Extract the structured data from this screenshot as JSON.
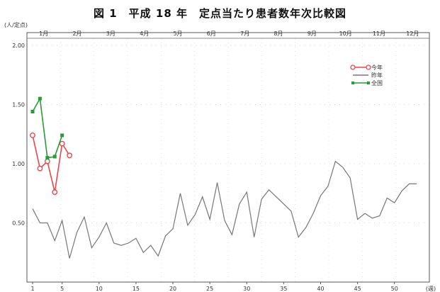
{
  "chart_data": {
    "type": "line",
    "title": "図 1　平成 18 年　定点当たり患者数年次比較図",
    "ylabel": "(人/定点)",
    "xlabel": "",
    "x_unit_label": "(週)",
    "ylim": [
      0,
      2.0
    ],
    "xlim": [
      1,
      53
    ],
    "y_ticks": [
      0.5,
      1.0,
      1.5,
      2.0
    ],
    "y_tick_labels": [
      "0.50",
      "1.00",
      "1.50",
      "2.00"
    ],
    "x_ticks": [
      1,
      5,
      10,
      15,
      20,
      25,
      30,
      35,
      40,
      45,
      50
    ],
    "x_tick_labels": [
      "1",
      "5",
      "10",
      "15",
      "20",
      "25",
      "30",
      "35",
      "40",
      "45",
      "50"
    ],
    "months": [
      "1月",
      "2月",
      "3月",
      "4月",
      "5月",
      "6月",
      "7月",
      "8月",
      "9月",
      "10月",
      "11月",
      "12月"
    ],
    "legend_position": "top-right",
    "grid": true,
    "series": [
      {
        "name": "今年",
        "color": "#e8474c",
        "marker": "circle",
        "x": [
          1,
          2,
          3,
          4,
          5,
          6
        ],
        "values": [
          1.24,
          0.96,
          1.02,
          0.76,
          1.17,
          1.07
        ]
      },
      {
        "name": "昨年",
        "color": "#777777",
        "marker": "none",
        "x": [
          1,
          2,
          3,
          4,
          5,
          6,
          7,
          8,
          9,
          10,
          11,
          12,
          13,
          14,
          15,
          16,
          17,
          18,
          19,
          20,
          21,
          22,
          23,
          24,
          25,
          26,
          27,
          28,
          29,
          30,
          31,
          32,
          33,
          34,
          35,
          36,
          37,
          38,
          39,
          40,
          41,
          42,
          43,
          44,
          45,
          46,
          47,
          48,
          49,
          50,
          51,
          52,
          53
        ],
        "values": [
          0.62,
          0.5,
          0.5,
          0.35,
          0.52,
          0.2,
          0.42,
          0.55,
          0.29,
          0.38,
          0.5,
          0.33,
          0.31,
          0.33,
          0.37,
          0.25,
          0.31,
          0.22,
          0.39,
          0.45,
          0.75,
          0.48,
          0.57,
          0.72,
          0.53,
          0.84,
          0.52,
          0.4,
          0.66,
          0.76,
          0.38,
          0.7,
          0.78,
          0.72,
          0.66,
          0.6,
          0.38,
          0.46,
          0.58,
          0.73,
          0.81,
          1.02,
          0.97,
          0.88,
          0.53,
          0.58,
          0.54,
          0.56,
          0.71,
          0.67,
          0.77,
          0.83,
          0.83
        ]
      },
      {
        "name": "全国",
        "color": "#2a9a3a",
        "marker": "square",
        "x": [
          1,
          2,
          3,
          4,
          5
        ],
        "values": [
          1.44,
          1.55,
          1.05,
          1.06,
          1.24
        ]
      }
    ]
  }
}
